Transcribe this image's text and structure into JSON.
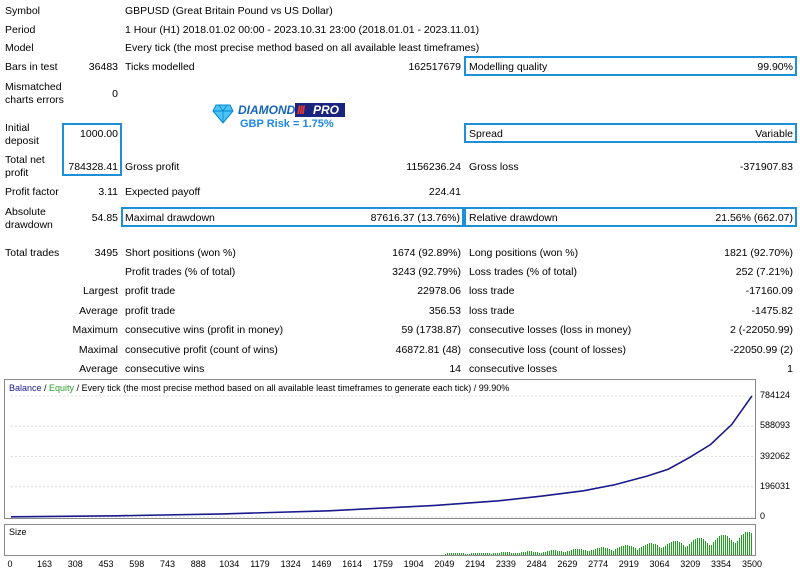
{
  "report": {
    "symbol_label": "Symbol",
    "symbol_value": "GBPUSD (Great Britain Pound vs US Dollar)",
    "period_label": "Period",
    "period_value": "1 Hour (H1) 2018.01.02 00:00 - 2023.10.31 23:00 (2018.01.01 - 2023.11.01)",
    "model_label": "Model",
    "model_value": "Every tick (the most precise method based on all available least timeframes)",
    "bars_label": "Bars in test",
    "bars_value": "36483",
    "ticks_label": "Ticks modelled",
    "ticks_value": "162517679",
    "mq_label": "Modelling quality",
    "mq_value": "99.90%",
    "mismatch_label_1": "Mismatched",
    "mismatch_label_2": "charts errors",
    "mismatch_value": "0",
    "initial_label_1": "Initial",
    "initial_label_2": "deposit",
    "initial_value": "1000.00",
    "spread_label": "Spread",
    "spread_value": "Variable",
    "netprofit_label_1": "Total net",
    "netprofit_label_2": "profit",
    "netprofit_value": "784328.41",
    "grossprofit_label": "Gross profit",
    "grossprofit_value": "1156236.24",
    "grossloss_label": "Gross loss",
    "grossloss_value": "-371907.83",
    "pf_label": "Profit factor",
    "pf_value": "3.11",
    "ep_label": "Expected payoff",
    "ep_value": "224.41",
    "absdd_label_1": "Absolute",
    "absdd_label_2": "drawdown",
    "absdd_value": "54.85",
    "maxdd_label": "Maximal drawdown",
    "maxdd_value": "87616.37 (13.76%)",
    "reldd_label": "Relative drawdown",
    "reldd_value": "21.56% (662.07)",
    "trades_label": "Total trades",
    "trades_value": "3495",
    "short_label": "Short positions (won %)",
    "short_value": "1674 (92.89%)",
    "long_label": "Long positions (won %)",
    "long_value": "1821 (92.70%)",
    "pt_label": "Profit trades (% of total)",
    "pt_value": "3243 (92.79%)",
    "lt_label": "Loss trades (% of total)",
    "lt_value": "252 (7.21%)",
    "largest_label": "Largest",
    "lp_label": "profit trade",
    "lp_value": "22978.06",
    "ll_label": "loss trade",
    "ll_value": "-17160.09",
    "average_label": "Average",
    "ap_label": "profit trade",
    "ap_value": "356.53",
    "al_label": "loss trade",
    "al_value": "-1475.82",
    "maximum_label": "Maximum",
    "mcw_label": "consecutive wins (profit in money)",
    "mcw_value": "59 (1738.87)",
    "mcl_label": "consecutive losses (loss in money)",
    "mcl_value": "2 (-22050.99)",
    "maximal_label": "Maximal",
    "mcp_label": "consecutive profit (count of wins)",
    "mcp_value": "46872.81 (48)",
    "mcloss_label": "consecutive loss (count of losses)",
    "mcloss_value": "-22050.99 (2)",
    "average2_label": "Average",
    "acw_label": "consecutive wins",
    "acw_value": "14",
    "acl_label": "consecutive losses",
    "acl_value": "1"
  },
  "logo": {
    "brand": "DIAMOND",
    "brand_suffix": "PRO",
    "risk_text": "GBP Risk = 1.75%",
    "icon": "diamond-icon"
  },
  "colors": {
    "highlight_border": "#1e90d8",
    "balance_line": "#1a1a8c",
    "equity_line": "#2e9d2e",
    "size_bars": "#1aa31a"
  },
  "chart_data": {
    "type": "line",
    "legend": {
      "balance": "Balance",
      "equity": "Equity"
    },
    "header_rest": " / Every tick (the most precise method based on all available least timeframes to generate each tick) / 99.90%",
    "size_label": "Size",
    "ylim": [
      0,
      784124
    ],
    "yticks": [
      "784124",
      "588093",
      "392062",
      "196031",
      "0"
    ],
    "xticks": [
      "0",
      "163",
      "308",
      "453",
      "598",
      "743",
      "888",
      "1034",
      "1179",
      "1324",
      "1469",
      "1614",
      "1759",
      "1904",
      "2049",
      "2194",
      "2339",
      "2484",
      "2629",
      "2774",
      "2919",
      "3064",
      "3209",
      "3354",
      "3500"
    ],
    "xlim": [
      0,
      3500
    ],
    "series": [
      {
        "name": "Balance",
        "x": [
          0,
          500,
          1000,
          1500,
          2000,
          2300,
          2500,
          2700,
          2850,
          3000,
          3100,
          3200,
          3300,
          3400,
          3495
        ],
        "y": [
          1000,
          8000,
          20000,
          40000,
          75000,
          105000,
          135000,
          170000,
          210000,
          265000,
          310000,
          385000,
          470000,
          600000,
          784328
        ]
      }
    ]
  }
}
